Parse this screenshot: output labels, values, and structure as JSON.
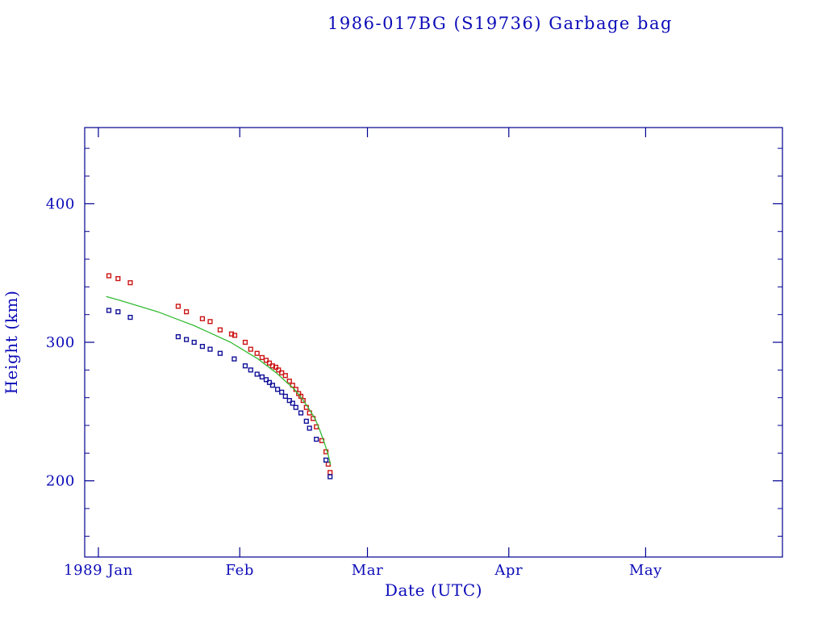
{
  "colors": {
    "background": "#ffffff",
    "frame": "#000090",
    "text": "#0b0bb8",
    "red_series": "#cc1414",
    "blue_series": "#101099",
    "green_line": "#33bb33"
  },
  "chart_data": {
    "type": "scatter",
    "title": "1986-017BG (S19736) Garbage bag",
    "xlabel": "Date (UTC)",
    "ylabel": "Height (km)",
    "grid": false,
    "legend": "none",
    "x_axis": {
      "unit": "day of year 1989",
      "range": [
        -2,
        151
      ],
      "month_ticks": [
        {
          "day": 1,
          "label": "1989 Jan"
        },
        {
          "day": 32,
          "label": "Feb"
        },
        {
          "day": 60,
          "label": "Mar"
        },
        {
          "day": 91,
          "label": "Apr"
        },
        {
          "day": 121,
          "label": "May"
        }
      ]
    },
    "y_axis": {
      "range": [
        145,
        455
      ],
      "major_ticks": [
        200,
        300,
        400
      ],
      "minor_step": 20
    },
    "series": [
      {
        "name": "red-squares",
        "type": "scatter",
        "marker": "open-square",
        "color_key": "red_series",
        "points": [
          [
            3.3,
            348
          ],
          [
            5.3,
            346
          ],
          [
            8.0,
            343
          ],
          [
            18.5,
            326
          ],
          [
            20.3,
            322
          ],
          [
            23.8,
            317
          ],
          [
            25.5,
            315
          ],
          [
            27.7,
            309
          ],
          [
            30.2,
            306
          ],
          [
            30.9,
            305
          ],
          [
            33.2,
            300
          ],
          [
            34.4,
            295
          ],
          [
            35.8,
            292
          ],
          [
            36.9,
            289
          ],
          [
            37.8,
            287
          ],
          [
            38.5,
            285
          ],
          [
            39.2,
            283
          ],
          [
            39.9,
            282
          ],
          [
            40.5,
            280
          ],
          [
            41.2,
            278
          ],
          [
            42.0,
            276
          ],
          [
            42.9,
            272
          ],
          [
            43.6,
            269
          ],
          [
            44.3,
            266
          ],
          [
            44.9,
            263
          ],
          [
            45.4,
            261
          ],
          [
            45.9,
            258
          ],
          [
            46.6,
            253
          ],
          [
            47.3,
            249
          ],
          [
            48.1,
            245
          ],
          [
            48.8,
            239
          ],
          [
            50.0,
            229
          ],
          [
            50.9,
            221
          ],
          [
            51.4,
            212
          ],
          [
            51.8,
            206
          ]
        ]
      },
      {
        "name": "blue-squares",
        "type": "scatter",
        "marker": "open-square",
        "color_key": "blue_series",
        "points": [
          [
            3.3,
            323
          ],
          [
            5.3,
            322
          ],
          [
            8.0,
            318
          ],
          [
            18.5,
            304
          ],
          [
            20.3,
            302
          ],
          [
            22.0,
            300
          ],
          [
            23.8,
            297
          ],
          [
            25.5,
            295
          ],
          [
            27.7,
            292
          ],
          [
            30.8,
            288
          ],
          [
            33.2,
            283
          ],
          [
            34.4,
            280
          ],
          [
            35.8,
            277
          ],
          [
            36.9,
            275
          ],
          [
            37.8,
            273
          ],
          [
            38.5,
            271
          ],
          [
            39.2,
            269
          ],
          [
            40.3,
            266
          ],
          [
            41.2,
            264
          ],
          [
            42.0,
            261
          ],
          [
            42.9,
            258
          ],
          [
            43.6,
            256
          ],
          [
            44.3,
            253
          ],
          [
            45.4,
            249
          ],
          [
            46.6,
            243
          ],
          [
            47.3,
            238
          ],
          [
            48.8,
            230
          ],
          [
            50.9,
            215
          ],
          [
            51.8,
            203
          ]
        ]
      },
      {
        "name": "green-curve",
        "type": "line",
        "color_key": "green_line",
        "points": [
          [
            2.8,
            333
          ],
          [
            6,
            330
          ],
          [
            10,
            326
          ],
          [
            14,
            322
          ],
          [
            18,
            317
          ],
          [
            22,
            312
          ],
          [
            26,
            306
          ],
          [
            30,
            300
          ],
          [
            33,
            294
          ],
          [
            36,
            288
          ],
          [
            38,
            283
          ],
          [
            40,
            278
          ],
          [
            42,
            272
          ],
          [
            44,
            266
          ],
          [
            45.5,
            260
          ],
          [
            47,
            253
          ],
          [
            48.5,
            245
          ],
          [
            49.5,
            237
          ],
          [
            50.5,
            228
          ],
          [
            51.3,
            220
          ],
          [
            51.9,
            212
          ]
        ]
      }
    ]
  }
}
